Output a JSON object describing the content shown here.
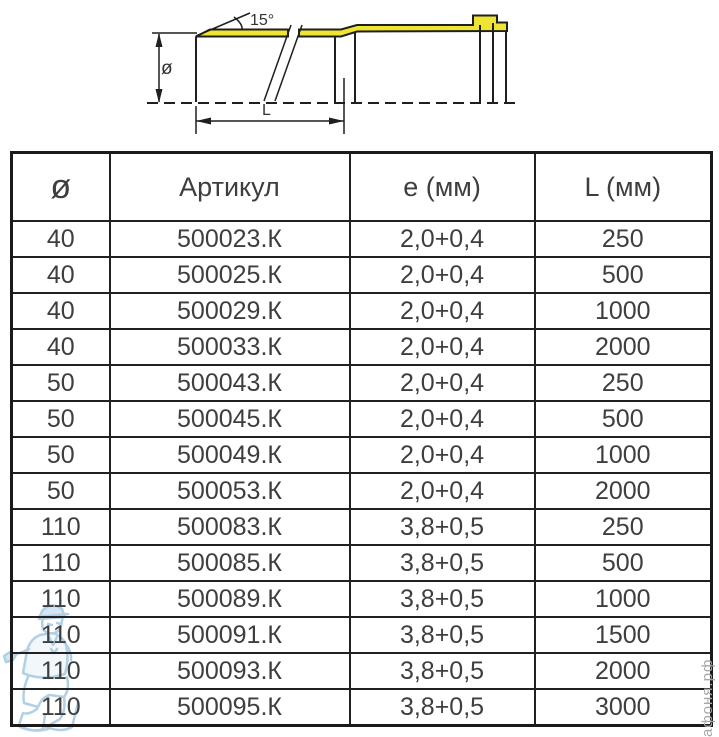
{
  "page": {
    "background": "#ffffff",
    "text_color": "#3e3e3e",
    "border_color": "#212121"
  },
  "diagram": {
    "name": "pipe-section-drawing",
    "angle_label": "15°",
    "diameter_label": "ø",
    "length_label": "L",
    "pipe_highlight_color": "#f0e433",
    "line_color": "#1f1f1f"
  },
  "table": {
    "columns": [
      {
        "key": "diameter",
        "label": "ø"
      },
      {
        "key": "article",
        "label": "Артикул"
      },
      {
        "key": "e",
        "label": "e (мм)"
      },
      {
        "key": "l",
        "label": "L (мм)"
      }
    ],
    "rows": [
      [
        "40",
        "500023.К",
        "2,0+0,4",
        "250"
      ],
      [
        "40",
        "500025.К",
        "2,0+0,4",
        "500"
      ],
      [
        "40",
        "500029.К",
        "2,0+0,4",
        "1000"
      ],
      [
        "40",
        "500033.К",
        "2,0+0,4",
        "2000"
      ],
      [
        "50",
        "500043.К",
        "2,0+0,4",
        "250"
      ],
      [
        "50",
        "500045.К",
        "2,0+0,4",
        "500"
      ],
      [
        "50",
        "500049.К",
        "2,0+0,4",
        "1000"
      ],
      [
        "50",
        "500053.К",
        "2,0+0,4",
        "2000"
      ],
      [
        "110",
        "500083.К",
        "3,8+0,5",
        "250"
      ],
      [
        "110",
        "500085.К",
        "3,8+0,5",
        "500"
      ],
      [
        "110",
        "500089.К",
        "3,8+0,5",
        "1000"
      ],
      [
        "110",
        "500091.К",
        "3,8+0,5",
        "1500"
      ],
      [
        "110",
        "500093.К",
        "3,8+0,5",
        "2000"
      ],
      [
        "110",
        "500095.К",
        "3,8+0,5",
        "3000"
      ]
    ]
  },
  "watermarks": {
    "site_text": "афоня.рф",
    "site_text_color": "#a8a8a8",
    "figure": "plumber-mascot",
    "figure_color": "#a9cbe2"
  }
}
